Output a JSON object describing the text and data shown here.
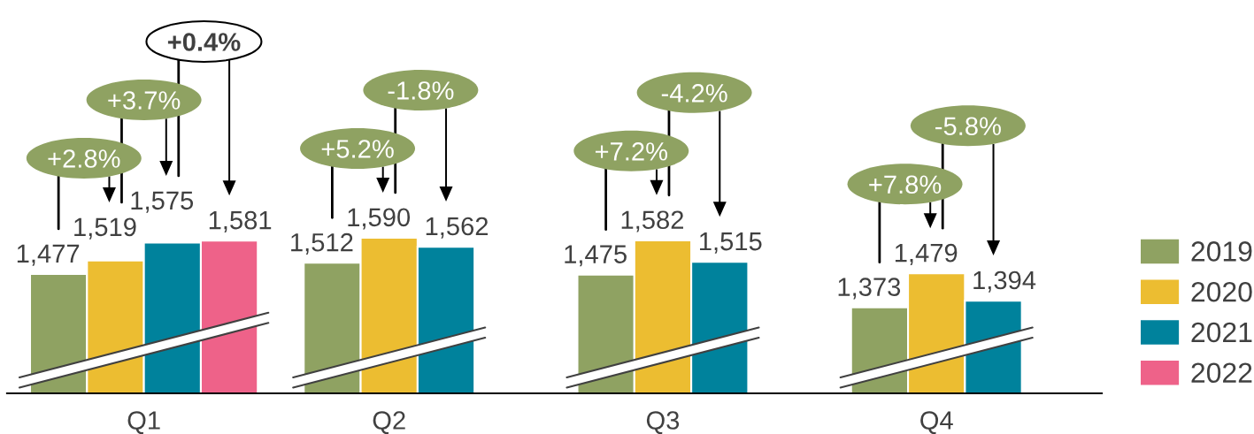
{
  "chart_data": {
    "type": "bar",
    "categories": [
      "Q1",
      "Q2",
      "Q3",
      "Q4"
    ],
    "series": [
      {
        "name": "2019",
        "color": "#8fa262",
        "values": [
          1477,
          1512,
          1475,
          1373
        ],
        "value_labels": [
          "1,477",
          "1,512",
          "1,475",
          "1,373"
        ]
      },
      {
        "name": "2020",
        "color": "#ecbd31",
        "values": [
          1519,
          1590,
          1582,
          1479
        ],
        "value_labels": [
          "1,519",
          "1,590",
          "1,582",
          "1,479"
        ]
      },
      {
        "name": "2021",
        "color": "#00829c",
        "values": [
          1575,
          1562,
          1515,
          1394
        ],
        "value_labels": [
          "1,575",
          "1,562",
          "1,515",
          "1,394"
        ]
      },
      {
        "name": "2022",
        "color": "#ee6289",
        "values": [
          1581,
          null,
          null,
          null
        ],
        "value_labels": [
          "1,581",
          null,
          null,
          null
        ]
      }
    ],
    "tick_labels": "x",
    "legend": "right",
    "annotations": [
      "+2.8%",
      "+3.7%",
      "+0.4%",
      "+5.2%",
      "-1.8%",
      "+7.2%",
      "-4.2%",
      "+7.8%",
      "-5.8%"
    ]
  }
}
